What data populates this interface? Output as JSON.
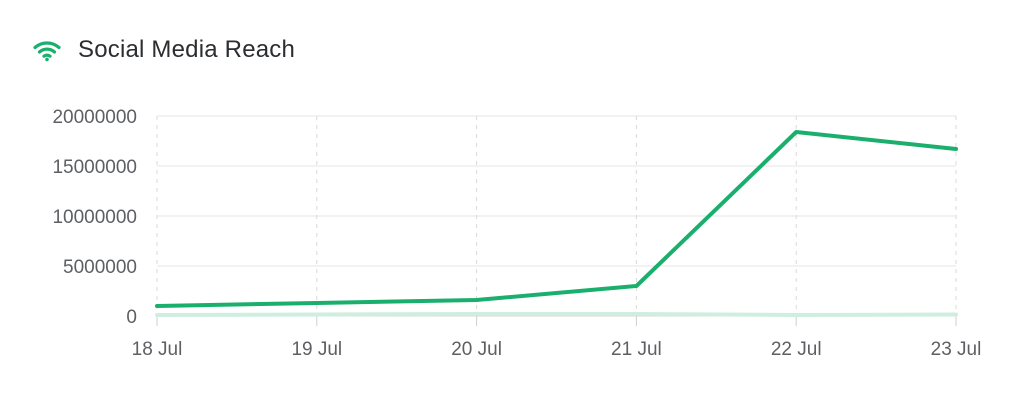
{
  "header": {
    "title": "Social Media Reach",
    "icon": "wifi-icon"
  },
  "colors": {
    "accent": "#1aaf6c",
    "secondary_series": "#cfeee0",
    "grid": "#e6e6e6",
    "axis_text": "#5d5f63"
  },
  "chart_data": {
    "type": "line",
    "title": "",
    "xlabel": "",
    "ylabel": "",
    "x": [
      "18 Jul",
      "19 Jul",
      "20 Jul",
      "21 Jul",
      "22 Jul",
      "23 Jul"
    ],
    "ylim": [
      0,
      20000000
    ],
    "yticks": [
      0,
      5000000,
      10000000,
      15000000,
      20000000
    ],
    "grid": true,
    "legend": "none",
    "series": [
      {
        "values": [
          1000000,
          1300000,
          1600000,
          3000000,
          18400000,
          16700000
        ],
        "color": "#1aaf6c"
      },
      {
        "values": [
          100000,
          150000,
          200000,
          200000,
          100000,
          150000
        ],
        "color": "#cfeee0"
      }
    ]
  }
}
